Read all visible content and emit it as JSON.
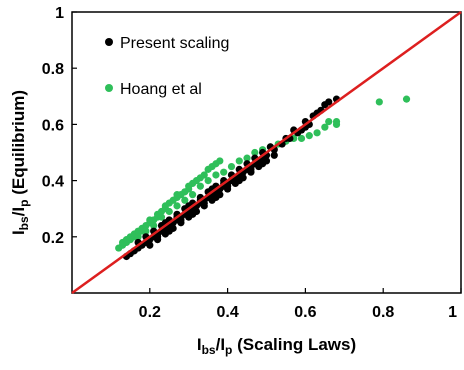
{
  "chart_data": {
    "type": "scatter",
    "xlabel_main": "I",
    "xlabel_sub1": "bs",
    "xlabel_mid": "/I",
    "xlabel_sub2": "p",
    "xlabel_tail": " (Scaling Laws)",
    "ylabel_main": "I",
    "ylabel_sub1": "bs",
    "ylabel_mid": "/I",
    "ylabel_sub2": "p",
    "ylabel_tail": " (Equilibrium)",
    "xlim": [
      0,
      1
    ],
    "ylim": [
      0,
      1
    ],
    "x_ticks": [
      {
        "value": 0.2,
        "label": "0.2"
      },
      {
        "value": 0.4,
        "label": "0.4"
      },
      {
        "value": 0.6,
        "label": "0.6"
      },
      {
        "value": 0.8,
        "label": "0.8"
      },
      {
        "value": 1.0,
        "label": "1"
      }
    ],
    "y_ticks": [
      {
        "value": 0.2,
        "label": "0.2"
      },
      {
        "value": 0.4,
        "label": "0.4"
      },
      {
        "value": 0.6,
        "label": "0.6"
      },
      {
        "value": 0.8,
        "label": "0.8"
      },
      {
        "value": 1.0,
        "label": "1"
      }
    ],
    "grid": false,
    "legend_position": "top-left",
    "reference_line": {
      "x": [
        0,
        1
      ],
      "y": [
        0,
        1
      ],
      "color": "#dd1f1f"
    },
    "series": [
      {
        "name": "Present scaling",
        "color": "#000000",
        "points": [
          [
            0.14,
            0.13
          ],
          [
            0.15,
            0.14
          ],
          [
            0.16,
            0.15
          ],
          [
            0.17,
            0.16
          ],
          [
            0.18,
            0.17
          ],
          [
            0.19,
            0.18
          ],
          [
            0.2,
            0.19
          ],
          [
            0.21,
            0.2
          ],
          [
            0.22,
            0.21
          ],
          [
            0.23,
            0.22
          ],
          [
            0.24,
            0.23
          ],
          [
            0.25,
            0.24
          ],
          [
            0.26,
            0.25
          ],
          [
            0.27,
            0.26
          ],
          [
            0.28,
            0.27
          ],
          [
            0.29,
            0.28
          ],
          [
            0.3,
            0.29
          ],
          [
            0.31,
            0.3
          ],
          [
            0.32,
            0.31
          ],
          [
            0.33,
            0.32
          ],
          [
            0.34,
            0.33
          ],
          [
            0.35,
            0.34
          ],
          [
            0.36,
            0.35
          ],
          [
            0.37,
            0.36
          ],
          [
            0.38,
            0.37
          ],
          [
            0.39,
            0.38
          ],
          [
            0.4,
            0.39
          ],
          [
            0.41,
            0.4
          ],
          [
            0.42,
            0.41
          ],
          [
            0.43,
            0.42
          ],
          [
            0.44,
            0.43
          ],
          [
            0.45,
            0.44
          ],
          [
            0.46,
            0.45
          ],
          [
            0.47,
            0.46
          ],
          [
            0.48,
            0.47
          ],
          [
            0.49,
            0.48
          ],
          [
            0.5,
            0.49
          ],
          [
            0.52,
            0.51
          ],
          [
            0.54,
            0.53
          ],
          [
            0.56,
            0.55
          ],
          [
            0.58,
            0.57
          ],
          [
            0.6,
            0.59
          ],
          [
            0.17,
            0.18
          ],
          [
            0.19,
            0.2
          ],
          [
            0.21,
            0.22
          ],
          [
            0.23,
            0.24
          ],
          [
            0.25,
            0.26
          ],
          [
            0.27,
            0.28
          ],
          [
            0.29,
            0.3
          ],
          [
            0.31,
            0.32
          ],
          [
            0.33,
            0.34
          ],
          [
            0.35,
            0.36
          ],
          [
            0.37,
            0.38
          ],
          [
            0.39,
            0.4
          ],
          [
            0.41,
            0.42
          ],
          [
            0.43,
            0.44
          ],
          [
            0.45,
            0.46
          ],
          [
            0.47,
            0.48
          ],
          [
            0.49,
            0.5
          ],
          [
            0.51,
            0.52
          ],
          [
            0.2,
            0.17
          ],
          [
            0.22,
            0.19
          ],
          [
            0.24,
            0.21
          ],
          [
            0.26,
            0.23
          ],
          [
            0.28,
            0.25
          ],
          [
            0.3,
            0.27
          ],
          [
            0.32,
            0.29
          ],
          [
            0.34,
            0.31
          ],
          [
            0.36,
            0.33
          ],
          [
            0.38,
            0.35
          ],
          [
            0.4,
            0.37
          ],
          [
            0.42,
            0.39
          ],
          [
            0.44,
            0.41
          ],
          [
            0.46,
            0.43
          ],
          [
            0.48,
            0.45
          ],
          [
            0.5,
            0.47
          ],
          [
            0.52,
            0.49
          ],
          [
            0.22,
            0.2
          ],
          [
            0.25,
            0.22
          ],
          [
            0.28,
            0.26
          ],
          [
            0.31,
            0.28
          ],
          [
            0.34,
            0.32
          ],
          [
            0.37,
            0.34
          ],
          [
            0.4,
            0.38
          ],
          [
            0.43,
            0.4
          ],
          [
            0.46,
            0.44
          ],
          [
            0.49,
            0.46
          ],
          [
            0.24,
            0.25
          ],
          [
            0.27,
            0.27
          ],
          [
            0.3,
            0.31
          ],
          [
            0.33,
            0.33
          ],
          [
            0.36,
            0.37
          ],
          [
            0.39,
            0.39
          ],
          [
            0.55,
            0.55
          ],
          [
            0.57,
            0.58
          ],
          [
            0.59,
            0.58
          ],
          [
            0.6,
            0.61
          ],
          [
            0.61,
            0.6
          ],
          [
            0.62,
            0.63
          ],
          [
            0.63,
            0.64
          ],
          [
            0.64,
            0.65
          ],
          [
            0.65,
            0.67
          ],
          [
            0.66,
            0.68
          ],
          [
            0.68,
            0.69
          ]
        ]
      },
      {
        "name": "Hoang et al",
        "color": "#2fbf5a",
        "points": [
          [
            0.12,
            0.16
          ],
          [
            0.13,
            0.17
          ],
          [
            0.13,
            0.18
          ],
          [
            0.14,
            0.18
          ],
          [
            0.14,
            0.19
          ],
          [
            0.15,
            0.19
          ],
          [
            0.15,
            0.2
          ],
          [
            0.16,
            0.2
          ],
          [
            0.16,
            0.21
          ],
          [
            0.17,
            0.22
          ],
          [
            0.18,
            0.22
          ],
          [
            0.18,
            0.23
          ],
          [
            0.19,
            0.24
          ],
          [
            0.2,
            0.25
          ],
          [
            0.2,
            0.26
          ],
          [
            0.21,
            0.26
          ],
          [
            0.22,
            0.27
          ],
          [
            0.22,
            0.28
          ],
          [
            0.23,
            0.29
          ],
          [
            0.24,
            0.3
          ],
          [
            0.24,
            0.31
          ],
          [
            0.25,
            0.32
          ],
          [
            0.26,
            0.33
          ],
          [
            0.27,
            0.34
          ],
          [
            0.27,
            0.35
          ],
          [
            0.28,
            0.35
          ],
          [
            0.29,
            0.36
          ],
          [
            0.3,
            0.37
          ],
          [
            0.3,
            0.38
          ],
          [
            0.31,
            0.39
          ],
          [
            0.32,
            0.4
          ],
          [
            0.33,
            0.41
          ],
          [
            0.34,
            0.42
          ],
          [
            0.35,
            0.44
          ],
          [
            0.36,
            0.45
          ],
          [
            0.37,
            0.46
          ],
          [
            0.38,
            0.47
          ],
          [
            0.17,
            0.2
          ],
          [
            0.19,
            0.22
          ],
          [
            0.21,
            0.24
          ],
          [
            0.23,
            0.27
          ],
          [
            0.25,
            0.29
          ],
          [
            0.27,
            0.31
          ],
          [
            0.29,
            0.33
          ],
          [
            0.31,
            0.35
          ],
          [
            0.33,
            0.38
          ],
          [
            0.35,
            0.4
          ],
          [
            0.37,
            0.42
          ],
          [
            0.39,
            0.43
          ],
          [
            0.41,
            0.45
          ],
          [
            0.43,
            0.47
          ],
          [
            0.45,
            0.48
          ],
          [
            0.47,
            0.5
          ],
          [
            0.49,
            0.51
          ],
          [
            0.51,
            0.52
          ],
          [
            0.53,
            0.53
          ],
          [
            0.55,
            0.54
          ],
          [
            0.57,
            0.55
          ],
          [
            0.59,
            0.55
          ],
          [
            0.61,
            0.56
          ],
          [
            0.63,
            0.57
          ],
          [
            0.65,
            0.59
          ],
          [
            0.66,
            0.61
          ],
          [
            0.68,
            0.61
          ],
          [
            0.68,
            0.6
          ],
          [
            0.79,
            0.68
          ],
          [
            0.86,
            0.69
          ]
        ]
      }
    ]
  }
}
